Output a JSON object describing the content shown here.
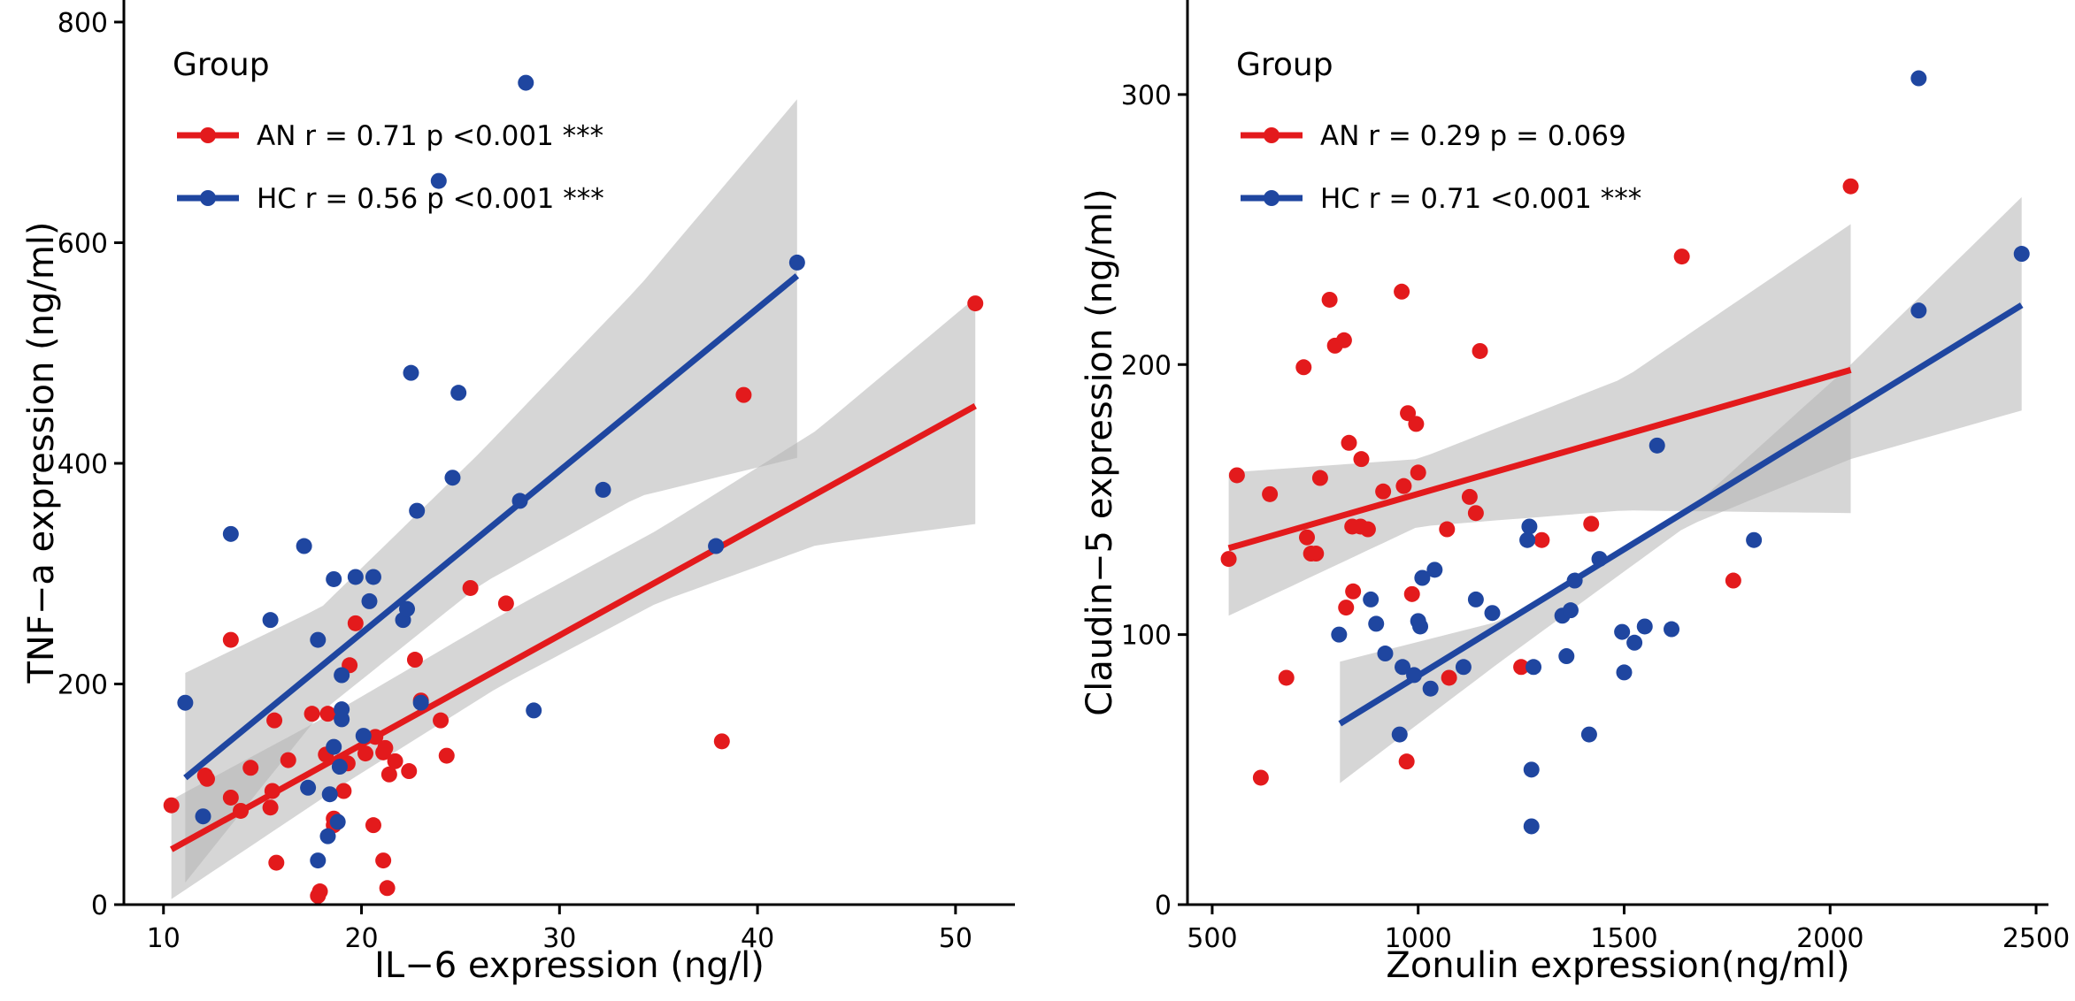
{
  "colors": {
    "AN": "#e31a1c",
    "HC": "#1f46a0",
    "ribbon": "#b4b4b4",
    "axis": "#000000"
  },
  "chart_data": [
    {
      "type": "scatter",
      "xlabel": "IL−6 expression (ng/l)",
      "ylabel": "TNF−a expression (ng/ml)",
      "xlim": [
        8,
        53
      ],
      "ylim": [
        0,
        820
      ],
      "xticks": [
        10,
        20,
        30,
        40,
        50
      ],
      "yticks": [
        0,
        200,
        400,
        600,
        800
      ],
      "grid": false,
      "legend": {
        "title": "Group",
        "position": "top-left",
        "entries": [
          {
            "key": "AN",
            "label": "AN r = 0.71 p <0.001 ***"
          },
          {
            "key": "HC",
            "label": "HC r = 0.56 p <0.001 ***"
          }
        ]
      },
      "series": [
        {
          "key": "AN",
          "fit": {
            "x": [
              10.4,
              51.0
            ],
            "y": [
              50,
              452
            ]
          },
          "ribbon": {
            "x": [
              10.4,
              19.0,
              27.0,
              35.0,
              43.0,
              51.0
            ],
            "upper": [
              95,
              178,
              262,
              340,
              430,
              550
            ],
            "lower": [
              5,
              108,
              198,
              274,
              326,
              345
            ]
          },
          "points": [
            [
              10.4,
              90
            ],
            [
              12.1,
              117
            ],
            [
              12.2,
              114
            ],
            [
              13.4,
              97
            ],
            [
              13.4,
              240
            ],
            [
              13.9,
              85
            ],
            [
              14.4,
              124
            ],
            [
              15.4,
              88
            ],
            [
              15.5,
              103
            ],
            [
              15.6,
              167
            ],
            [
              15.7,
              38
            ],
            [
              16.3,
              131
            ],
            [
              17.5,
              173
            ],
            [
              17.8,
              8
            ],
            [
              17.9,
              12
            ],
            [
              18.2,
              136
            ],
            [
              18.3,
              173
            ],
            [
              18.6,
              72
            ],
            [
              18.6,
              78
            ],
            [
              19.1,
              103
            ],
            [
              19.3,
              128
            ],
            [
              19.4,
              217
            ],
            [
              19.7,
              255
            ],
            [
              20.2,
              137
            ],
            [
              20.6,
              72
            ],
            [
              20.7,
              152
            ],
            [
              21.1,
              40
            ],
            [
              21.1,
              138
            ],
            [
              21.2,
              142
            ],
            [
              21.3,
              15
            ],
            [
              21.4,
              118
            ],
            [
              21.7,
              130
            ],
            [
              22.4,
              121
            ],
            [
              22.7,
              222
            ],
            [
              23.0,
              185
            ],
            [
              24.0,
              167
            ],
            [
              24.3,
              135
            ],
            [
              25.5,
              287
            ],
            [
              27.3,
              273
            ],
            [
              38.2,
              148
            ],
            [
              39.3,
              462
            ],
            [
              51.0,
              545
            ]
          ]
        },
        {
          "key": "HC",
          "fit": {
            "x": [
              11.1,
              42.0
            ],
            "y": [
              115,
              570
            ]
          },
          "ribbon": {
            "x": [
              11.1,
              18.0,
              26.0,
              34.0,
              42.0
            ],
            "upper": [
              210,
              270,
              410,
              560,
              730
            ],
            "lower": [
              20,
              175,
              290,
              370,
              405
            ]
          },
          "points": [
            [
              11.1,
              183
            ],
            [
              12.0,
              80
            ],
            [
              13.4,
              336
            ],
            [
              15.4,
              258
            ],
            [
              17.1,
              325
            ],
            [
              17.3,
              106
            ],
            [
              17.8,
              40
            ],
            [
              17.8,
              240
            ],
            [
              18.3,
              62
            ],
            [
              18.4,
              100
            ],
            [
              18.6,
              143
            ],
            [
              18.6,
              295
            ],
            [
              18.8,
              75
            ],
            [
              18.9,
              125
            ],
            [
              19.0,
              208
            ],
            [
              19.0,
              168
            ],
            [
              19.0,
              177
            ],
            [
              19.7,
              297
            ],
            [
              20.1,
              153
            ],
            [
              20.4,
              275
            ],
            [
              20.6,
              297
            ],
            [
              22.1,
              258
            ],
            [
              22.3,
              268
            ],
            [
              22.5,
              482
            ],
            [
              22.8,
              357
            ],
            [
              23.0,
              183
            ],
            [
              24.6,
              387
            ],
            [
              24.9,
              464
            ],
            [
              28.0,
              366
            ],
            [
              28.3,
              745
            ],
            [
              28.7,
              176
            ],
            [
              32.2,
              376
            ],
            [
              37.9,
              325
            ],
            [
              23.9,
              656
            ],
            [
              42.0,
              582
            ]
          ]
        }
      ]
    },
    {
      "type": "scatter",
      "xlabel": "Zonulin expression(ng/ml)",
      "ylabel": "Claudin−5 expression (ng/ml)",
      "xlim": [
        440,
        2530
      ],
      "ylim": [
        0,
        335
      ],
      "xticks": [
        500,
        1000,
        1500,
        2000,
        2500
      ],
      "yticks": [
        0,
        100,
        200,
        300
      ],
      "grid": false,
      "legend": {
        "title": "Group",
        "position": "top-left",
        "entries": [
          {
            "key": "AN",
            "label": "AN r = 0.29 p = 0.069"
          },
          {
            "key": "HC",
            "label": "HC r = 0.71 <0.001 ***"
          }
        ]
      },
      "series": [
        {
          "key": "AN",
          "fit": {
            "x": [
              540,
              2050
            ],
            "y": [
              132,
              198
            ]
          },
          "ribbon": {
            "x": [
              540,
              1000,
              1500,
              2050
            ],
            "upper": [
              160,
              165,
              195,
              252
            ],
            "lower": [
              107,
              140,
              146,
              145
            ]
          },
          "points": [
            [
              540,
              128
            ],
            [
              560,
              159
            ],
            [
              618,
              47
            ],
            [
              640,
              152
            ],
            [
              680,
              84
            ],
            [
              722,
              199
            ],
            [
              730,
              136
            ],
            [
              740,
              130
            ],
            [
              752,
              130
            ],
            [
              762,
              158
            ],
            [
              785,
              224
            ],
            [
              798,
              207
            ],
            [
              820,
              209
            ],
            [
              825,
              110
            ],
            [
              832,
              171
            ],
            [
              840,
              140
            ],
            [
              842,
              116
            ],
            [
              860,
              140
            ],
            [
              862,
              165
            ],
            [
              878,
              139
            ],
            [
              915,
              153
            ],
            [
              960,
              227
            ],
            [
              965,
              155
            ],
            [
              972,
              53
            ],
            [
              975,
              182
            ],
            [
              985,
              115
            ],
            [
              995,
              178
            ],
            [
              1000,
              160
            ],
            [
              1070,
              139
            ],
            [
              1075,
              84
            ],
            [
              1125,
              151
            ],
            [
              1140,
              145
            ],
            [
              1150,
              205
            ],
            [
              1250,
              88
            ],
            [
              1300,
              135
            ],
            [
              1420,
              141
            ],
            [
              1640,
              240
            ],
            [
              1765,
              120
            ],
            [
              2050,
              266
            ]
          ]
        },
        {
          "key": "HC",
          "fit": {
            "x": [
              810,
              2465
            ],
            "y": [
              67,
              222
            ]
          },
          "ribbon": {
            "x": [
              810,
              1200,
              1650,
              2050,
              2465
            ],
            "upper": [
              90,
              105,
              145,
              200,
              262
            ],
            "lower": [
              45,
              90,
              140,
              165,
              183
            ]
          },
          "points": [
            [
              808,
              100
            ],
            [
              885,
              113
            ],
            [
              898,
              104
            ],
            [
              920,
              93
            ],
            [
              955,
              63
            ],
            [
              962,
              88
            ],
            [
              990,
              85
            ],
            [
              1000,
              105
            ],
            [
              1005,
              103
            ],
            [
              1010,
              121
            ],
            [
              1030,
              80
            ],
            [
              1040,
              124
            ],
            [
              1110,
              88
            ],
            [
              1180,
              108
            ],
            [
              1265,
              135
            ],
            [
              1270,
              140
            ],
            [
              1275,
              50
            ],
            [
              1275,
              29
            ],
            [
              1280,
              88
            ],
            [
              1350,
              107
            ],
            [
              1360,
              92
            ],
            [
              1370,
              109
            ],
            [
              1380,
              120
            ],
            [
              1415,
              63
            ],
            [
              1440,
              128
            ],
            [
              1495,
              101
            ],
            [
              1500,
              86
            ],
            [
              1525,
              97
            ],
            [
              1550,
              103
            ],
            [
              1580,
              170
            ],
            [
              1615,
              102
            ],
            [
              1815,
              135
            ],
            [
              1140,
              113
            ],
            [
              2215,
              306
            ],
            [
              2215,
              220
            ],
            [
              2465,
              241
            ]
          ]
        }
      ]
    }
  ]
}
